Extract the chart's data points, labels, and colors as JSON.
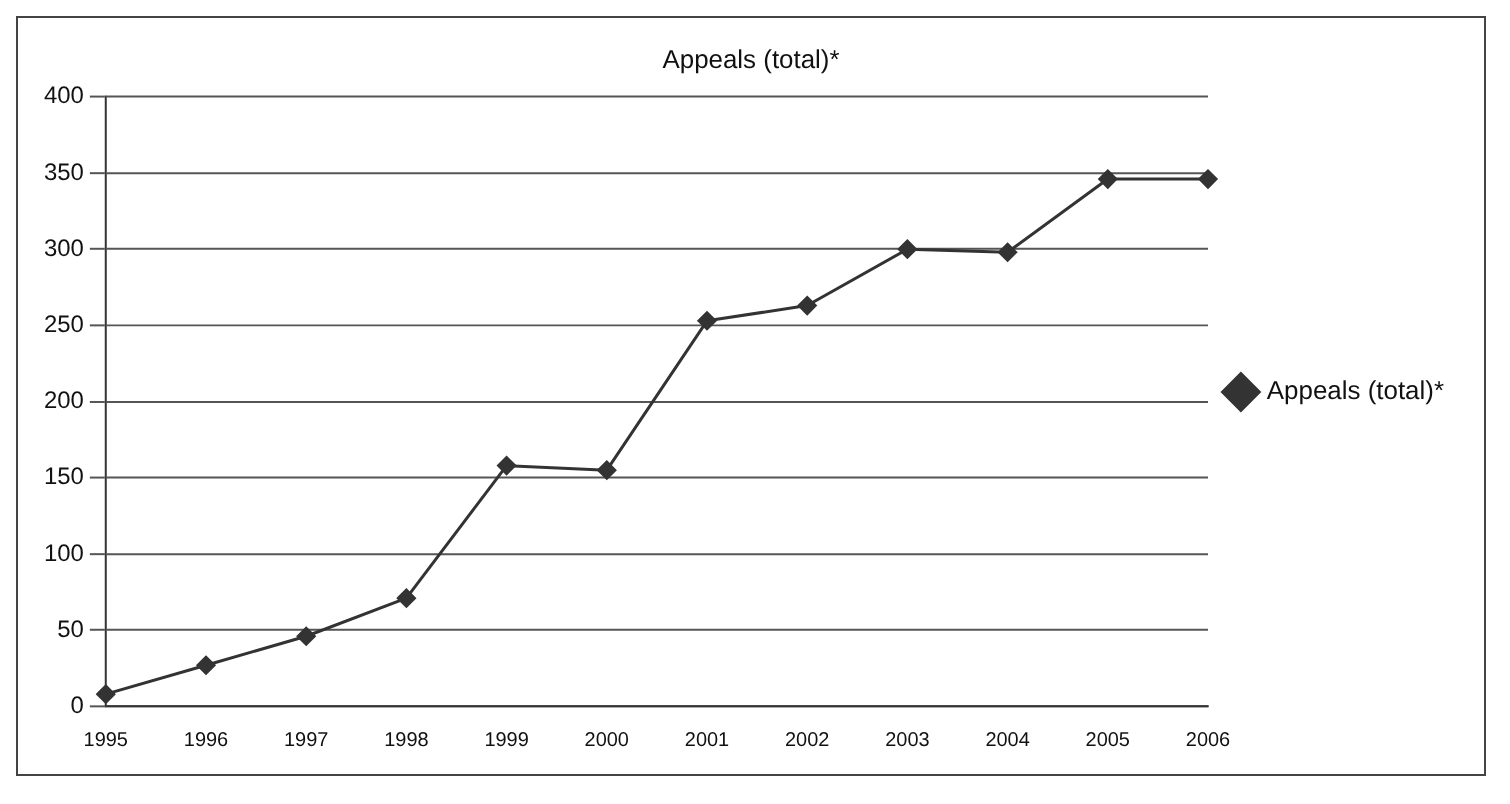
{
  "chart_data": {
    "type": "line",
    "title": "Appeals (total)*",
    "categories": [
      "1995",
      "1996",
      "1997",
      "1998",
      "1999",
      "2000",
      "2001",
      "2002",
      "2003",
      "2004",
      "2005",
      "2006"
    ],
    "series": [
      {
        "name": "Appeals (total)*",
        "color": "#333333",
        "values": [
          8,
          27,
          46,
          71,
          158,
          155,
          253,
          263,
          300,
          298,
          346,
          346
        ]
      }
    ],
    "ylim": [
      0,
      400
    ],
    "yticks": [
      0,
      50,
      100,
      150,
      200,
      250,
      300,
      350,
      400
    ],
    "grid": "y",
    "legend": "right",
    "marker": "diamond",
    "line_style": "solid"
  }
}
